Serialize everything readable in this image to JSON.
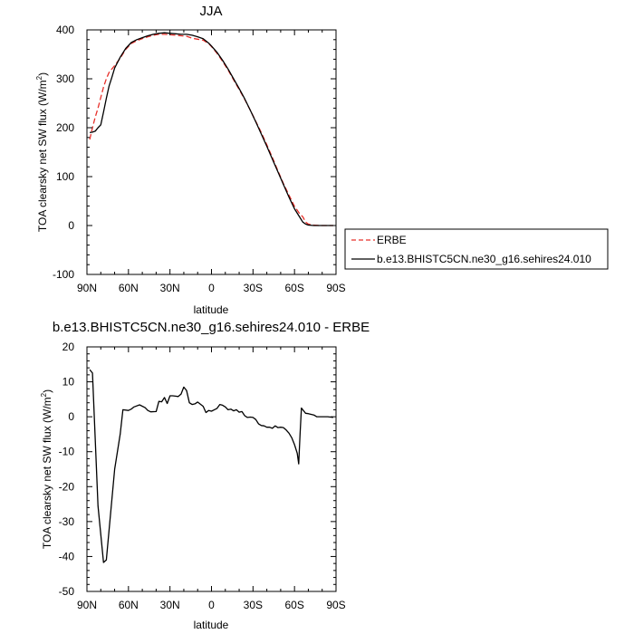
{
  "chart_data": [
    {
      "type": "line",
      "title": "JJA",
      "xlabel": "latitude",
      "ylabel": "TOA clearsky net SW flux (W/m",
      "ylabel_sup": "2",
      "ylabel_end": ")",
      "xlim": [
        90,
        -90
      ],
      "ylim": [
        -100,
        400
      ],
      "xticks": [
        90,
        60,
        30,
        0,
        -30,
        -60,
        -90
      ],
      "xticklabels": [
        "90N",
        "60N",
        "30N",
        "0",
        "30S",
        "60S",
        "90S"
      ],
      "yticks": [
        -100,
        0,
        100,
        200,
        300,
        400
      ],
      "yticklabels": [
        "-100",
        "0",
        "100",
        "200",
        "300",
        "400"
      ],
      "legend": {
        "placement": "outside-right"
      },
      "series": [
        {
          "name": "ERBE",
          "color": "#e8302a",
          "dash": "dashed",
          "points": [
            [
              88,
              176
            ],
            [
              86,
              200
            ],
            [
              84,
              222
            ],
            [
              82,
              240
            ],
            [
              80,
              262
            ],
            [
              78,
              283
            ],
            [
              76,
              300
            ],
            [
              74,
              313
            ],
            [
              72,
              320
            ],
            [
              70,
              327
            ],
            [
              66,
              342
            ],
            [
              62,
              360
            ],
            [
              58,
              372
            ],
            [
              54,
              378
            ],
            [
              50,
              382
            ],
            [
              46,
              386
            ],
            [
              42,
              389
            ],
            [
              38,
              391
            ],
            [
              34,
              391
            ],
            [
              30,
              390
            ],
            [
              26,
              389
            ],
            [
              22,
              388
            ],
            [
              18,
              387
            ],
            [
              14,
              383
            ],
            [
              10,
              381
            ],
            [
              6,
              379
            ],
            [
              2,
              372
            ],
            [
              0,
              366
            ],
            [
              -4,
              352
            ],
            [
              -8,
              336
            ],
            [
              -12,
              318
            ],
            [
              -16,
              298
            ],
            [
              -20,
              278
            ],
            [
              -24,
              258
            ],
            [
              -28,
              236
            ],
            [
              -32,
              213
            ],
            [
              -36,
              190
            ],
            [
              -40,
              165
            ],
            [
              -44,
              139
            ],
            [
              -48,
              112
            ],
            [
              -52,
              86
            ],
            [
              -56,
              62
            ],
            [
              -60,
              39
            ],
            [
              -64,
              23
            ],
            [
              -66,
              18
            ],
            [
              -68,
              7
            ],
            [
              -70,
              3
            ],
            [
              -74,
              1
            ],
            [
              -78,
              0
            ],
            [
              -82,
              0
            ],
            [
              -86,
              0
            ],
            [
              -88,
              0
            ]
          ]
        },
        {
          "name": "b.e13.BHISTC5CN.ne30_g16.sehires24.010",
          "color": "#000000",
          "dash": "solid",
          "points": [
            [
              88,
              190
            ],
            [
              86,
              191
            ],
            [
              84,
              193
            ],
            [
              82,
              200
            ],
            [
              80,
              206
            ],
            [
              78,
              232
            ],
            [
              76,
              260
            ],
            [
              74,
              285
            ],
            [
              72,
              303
            ],
            [
              70,
              322
            ],
            [
              66,
              344
            ],
            [
              62,
              362
            ],
            [
              58,
              374
            ],
            [
              54,
              380
            ],
            [
              50,
              384
            ],
            [
              46,
              388
            ],
            [
              42,
              391
            ],
            [
              38,
              393
            ],
            [
              34,
              394
            ],
            [
              30,
              393
            ],
            [
              26,
              392
            ],
            [
              22,
              391
            ],
            [
              18,
              391
            ],
            [
              14,
              389
            ],
            [
              10,
              386
            ],
            [
              6,
              382
            ],
            [
              2,
              373
            ],
            [
              0,
              367
            ],
            [
              -4,
              354
            ],
            [
              -8,
              338
            ],
            [
              -12,
              320
            ],
            [
              -16,
              300
            ],
            [
              -20,
              280
            ],
            [
              -24,
              259
            ],
            [
              -28,
              236
            ],
            [
              -32,
              212
            ],
            [
              -36,
              187
            ],
            [
              -40,
              162
            ],
            [
              -44,
              136
            ],
            [
              -48,
              110
            ],
            [
              -52,
              84
            ],
            [
              -56,
              58
            ],
            [
              -60,
              34
            ],
            [
              -64,
              16
            ],
            [
              -66,
              7
            ],
            [
              -68,
              3
            ],
            [
              -70,
              1
            ],
            [
              -74,
              0
            ],
            [
              -78,
              0
            ],
            [
              -82,
              0
            ],
            [
              -86,
              0
            ],
            [
              -88,
              0
            ]
          ]
        }
      ]
    },
    {
      "type": "line",
      "title": "b.e13.BHISTC5CN.ne30_g16.sehires24.010 - ERBE",
      "xlabel": "latitude",
      "ylabel": "TOA clearsky net SW flux (W/m",
      "ylabel_sup": "2",
      "ylabel_end": ")",
      "xlim": [
        90,
        -90
      ],
      "ylim": [
        -50,
        20
      ],
      "xticks": [
        90,
        60,
        30,
        0,
        -30,
        -60,
        -90
      ],
      "xticklabels": [
        "90N",
        "60N",
        "30N",
        "0",
        "30S",
        "60S",
        "90S"
      ],
      "yticks": [
        -50,
        -40,
        -30,
        -20,
        -10,
        0,
        10,
        20
      ],
      "yticklabels": [
        "-50",
        "-40",
        "-30",
        "-20",
        "-10",
        "0",
        "10",
        "20"
      ],
      "series": [
        {
          "color": "#000000",
          "dash": "solid",
          "points": [
            [
              88,
              13.5
            ],
            [
              86,
              12.5
            ],
            [
              82,
              -25.5
            ],
            [
              78,
              -41.7
            ],
            [
              76,
              -41
            ],
            [
              70,
              -15
            ],
            [
              66,
              -5
            ],
            [
              64,
              2
            ],
            [
              60,
              1.8
            ],
            [
              58,
              2.2
            ],
            [
              56,
              2.8
            ],
            [
              52,
              3.4
            ],
            [
              48,
              2.6
            ],
            [
              46,
              1.8
            ],
            [
              44,
              1.4
            ],
            [
              40,
              1.5
            ],
            [
              38,
              4.4
            ],
            [
              36,
              4.3
            ],
            [
              34,
              5.5
            ],
            [
              32,
              3.8
            ],
            [
              30,
              6
            ],
            [
              28,
              6
            ],
            [
              26,
              5.9
            ],
            [
              24,
              5.8
            ],
            [
              22,
              6.5
            ],
            [
              20,
              8.5
            ],
            [
              18,
              7.5
            ],
            [
              16,
              4
            ],
            [
              14,
              3.5
            ],
            [
              12,
              3.7
            ],
            [
              10,
              4.2
            ],
            [
              6,
              3
            ],
            [
              4,
              1.2
            ],
            [
              2,
              1.8
            ],
            [
              0,
              1.6
            ],
            [
              -2,
              2
            ],
            [
              -4,
              2.4
            ],
            [
              -6,
              3.5
            ],
            [
              -8,
              3.3
            ],
            [
              -10,
              2.8
            ],
            [
              -12,
              2
            ],
            [
              -14,
              2.2
            ],
            [
              -16,
              1.7
            ],
            [
              -18,
              2
            ],
            [
              -20,
              1.3
            ],
            [
              -22,
              1.5
            ],
            [
              -24,
              0.3
            ],
            [
              -26,
              -0.2
            ],
            [
              -28,
              -0.1
            ],
            [
              -30,
              -0.2
            ],
            [
              -32,
              -0.8
            ],
            [
              -34,
              -2
            ],
            [
              -36,
              -2.5
            ],
            [
              -38,
              -2.6
            ],
            [
              -40,
              -3
            ],
            [
              -42,
              -3
            ],
            [
              -44,
              -3.3
            ],
            [
              -46,
              -2.6
            ],
            [
              -48,
              -3.1
            ],
            [
              -50,
              -3
            ],
            [
              -52,
              -3.1
            ],
            [
              -54,
              -3.8
            ],
            [
              -56,
              -4.7
            ],
            [
              -58,
              -6
            ],
            [
              -60,
              -8
            ],
            [
              -62,
              -10.5
            ],
            [
              -63,
              -13.5
            ],
            [
              -64,
              -5
            ],
            [
              -65,
              2.5
            ],
            [
              -66,
              2
            ],
            [
              -68,
              1
            ],
            [
              -70,
              0.9
            ],
            [
              -74,
              0.5
            ],
            [
              -76,
              0
            ],
            [
              -80,
              0
            ],
            [
              -84,
              0
            ],
            [
              -88,
              -0.2
            ]
          ]
        }
      ]
    }
  ]
}
